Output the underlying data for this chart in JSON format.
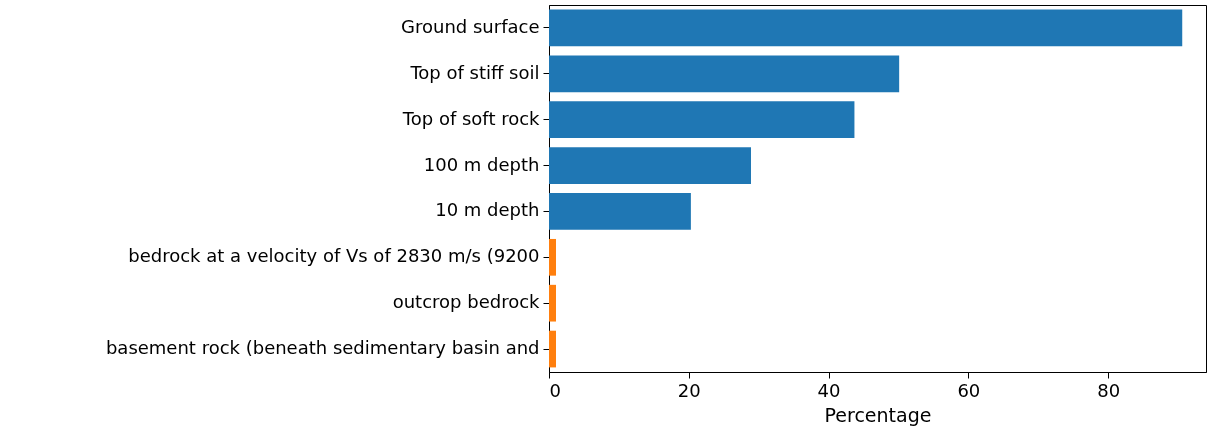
{
  "chart_data": {
    "type": "bar",
    "orientation": "horizontal",
    "xlabel": "Percentage",
    "categories": [
      "Ground surface",
      "Top of stiff soil",
      "Top of soft rock",
      "100 m depth",
      "10 m depth",
      "bedrock at a velocity of Vs of 2830 m/s (9200",
      "outcrop bedrock",
      "basement rock (beneath sedimentary basin and"
    ],
    "values": [
      90.6,
      50.1,
      43.7,
      28.9,
      20.3,
      1.0,
      1.0,
      1.0
    ],
    "colors": [
      "#1f77b4",
      "#1f77b4",
      "#1f77b4",
      "#1f77b4",
      "#1f77b4",
      "#ff7f0e",
      "#ff7f0e",
      "#ff7f0e"
    ],
    "xlim": [
      0,
      94
    ],
    "xticks": [
      0,
      20,
      40,
      60,
      80
    ],
    "grid": false
  }
}
